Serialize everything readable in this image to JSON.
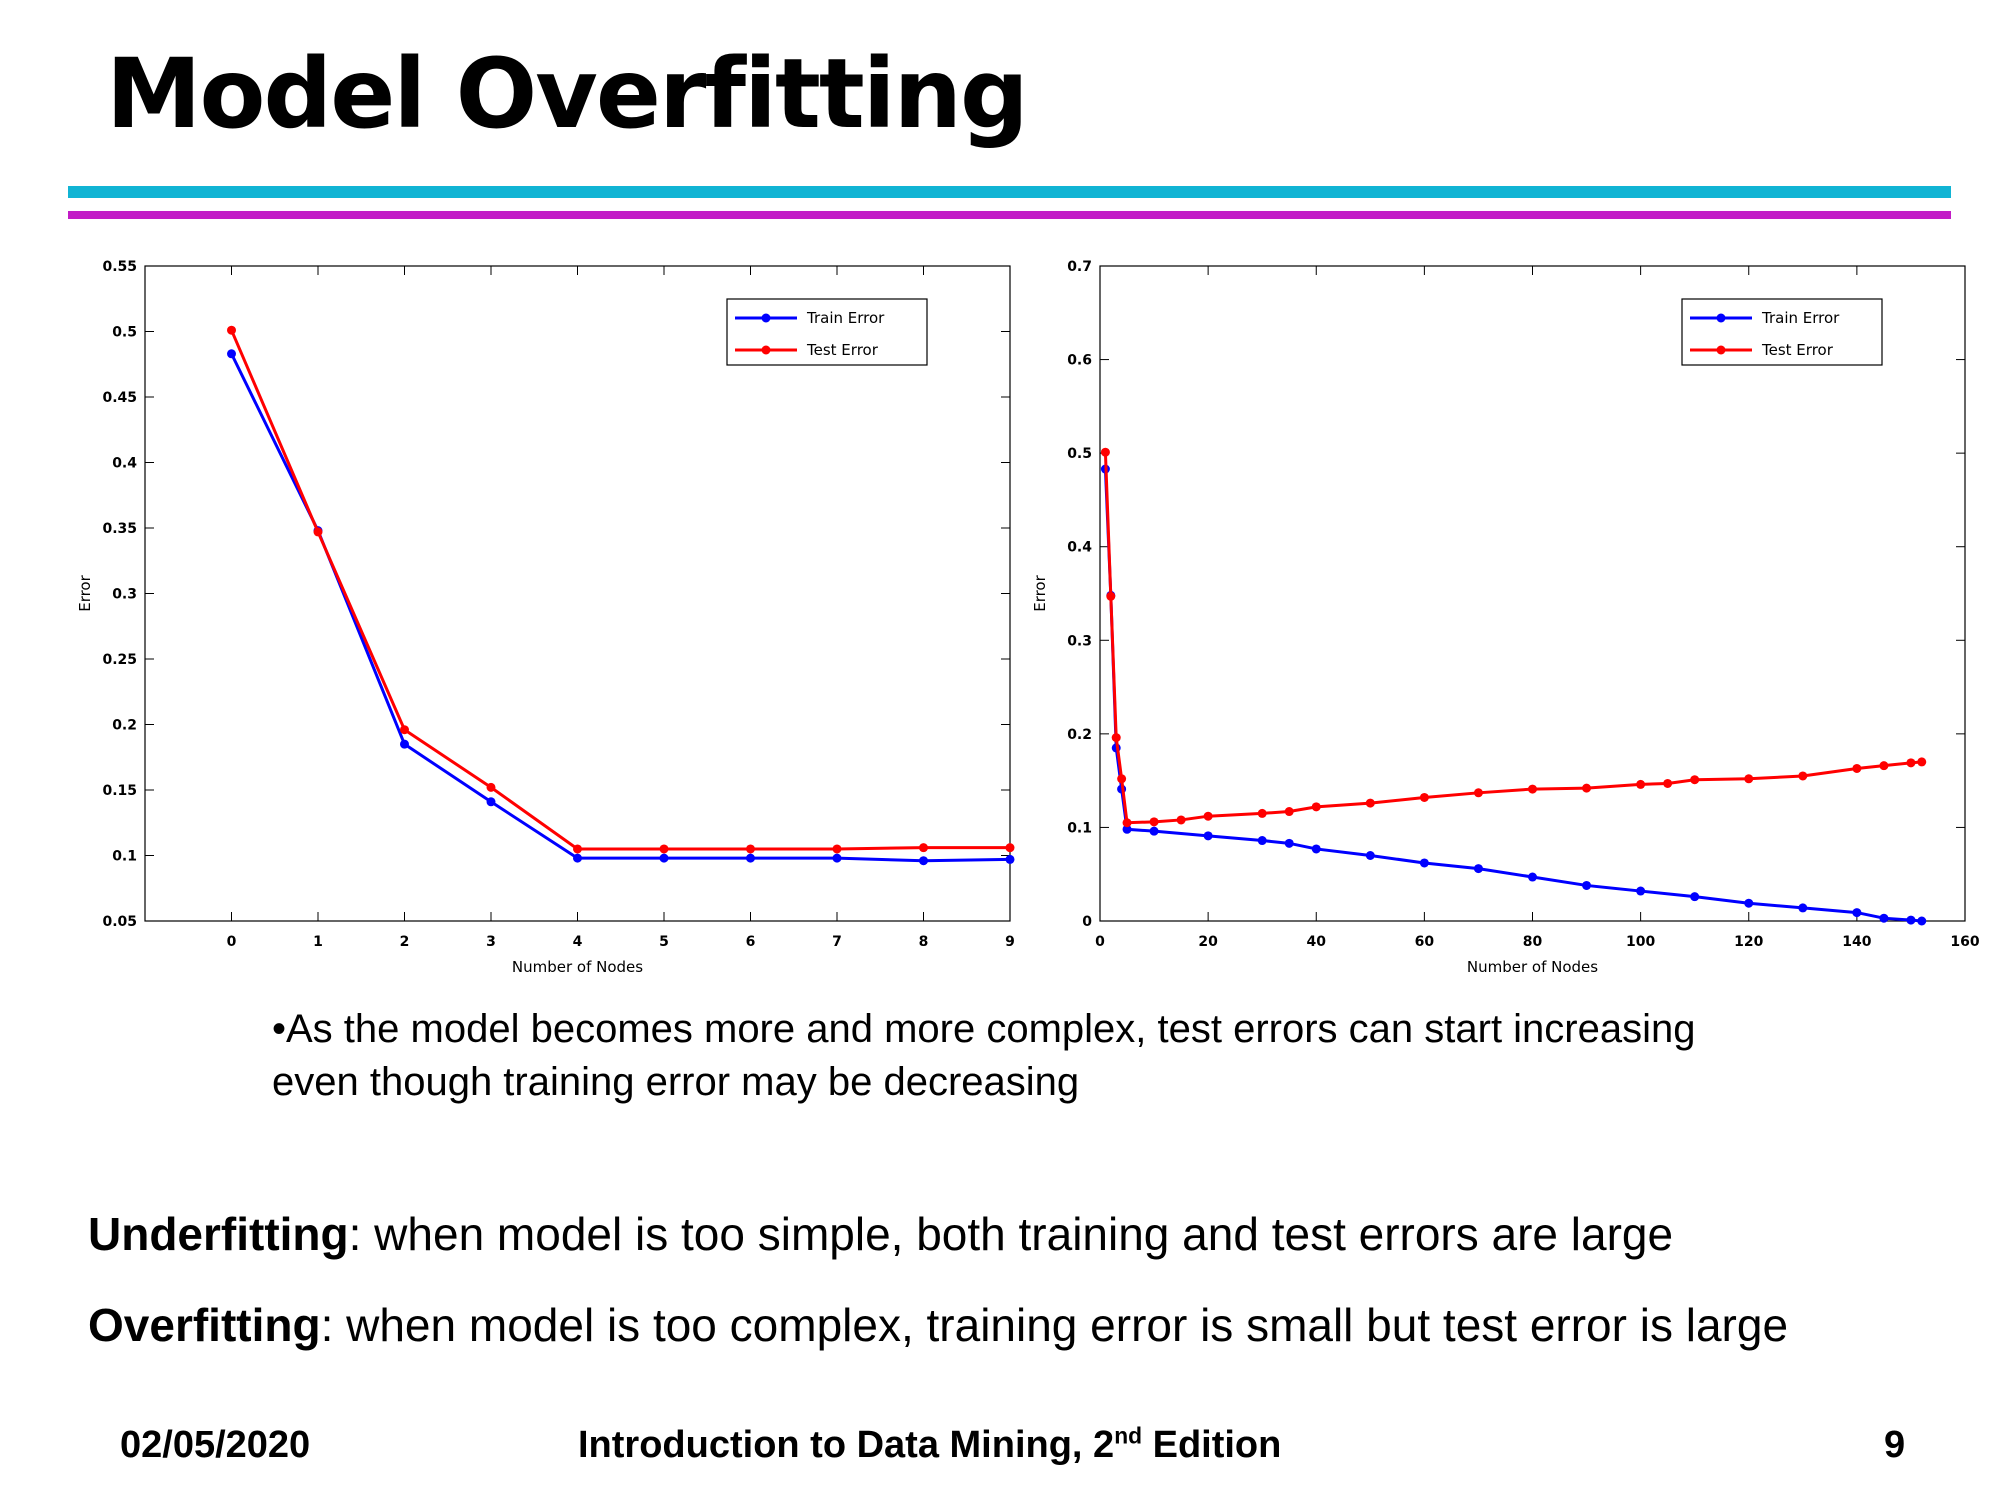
{
  "slide": {
    "title": "Model Overfitting",
    "bullet": "•As the model becomes more and more complex, test errors can start increasing even though training error may be decreasing",
    "underfitting_term": "Underfitting",
    "underfitting_text": ": when model is too simple, both training and test errors are large",
    "overfitting_term": "Overfitting",
    "overfitting_text": ": when model is too complex, training error is small but test error is large",
    "footer_date": "02/05/2020",
    "footer_course_prefix": "Introduction to Data Mining, 2",
    "footer_course_sup": "nd",
    "footer_course_suffix": " Edition",
    "page_number": "9"
  },
  "colors": {
    "cyan_rule": "#11b4d4",
    "magenta_rule": "#c21cc6",
    "train": "#0000ff",
    "test": "#ff0000"
  },
  "chart_data": [
    {
      "type": "line",
      "xlabel": "Number of Nodes",
      "ylabel": "Error",
      "xlim": [
        -1,
        9
      ],
      "ylim": [
        0.05,
        0.55
      ],
      "xticks": [
        0,
        1,
        2,
        3,
        4,
        5,
        6,
        7,
        8,
        9
      ],
      "xtick_labels": [
        "0",
        "1",
        "2",
        "3",
        "4",
        "5",
        "6",
        "7",
        "8",
        "9"
      ],
      "yticks": [
        0.05,
        0.1,
        0.15,
        0.2,
        0.25,
        0.3,
        0.35,
        0.4,
        0.45,
        0.5,
        0.55
      ],
      "ytick_labels": [
        "0.05",
        "0.1",
        "0.15",
        "0.2",
        "0.25",
        "0.3",
        "0.35",
        "0.4",
        "0.45",
        "0.5",
        "0.55"
      ],
      "grid": false,
      "legend": "top-right",
      "series": [
        {
          "name": "Train Error",
          "color": "#0000ff",
          "x": [
            0,
            1,
            2,
            3,
            4,
            5,
            6,
            7,
            8,
            9
          ],
          "y": [
            0.483,
            0.348,
            0.185,
            0.141,
            0.098,
            0.098,
            0.098,
            0.098,
            0.096,
            0.097
          ]
        },
        {
          "name": "Test Error",
          "color": "#ff0000",
          "x": [
            0,
            1,
            2,
            3,
            4,
            5,
            6,
            7,
            8,
            9
          ],
          "y": [
            0.501,
            0.347,
            0.196,
            0.152,
            0.105,
            0.105,
            0.105,
            0.105,
            0.106,
            0.106
          ]
        }
      ]
    },
    {
      "type": "line",
      "xlabel": "Number of Nodes",
      "ylabel": "Error",
      "xlim": [
        0,
        160
      ],
      "ylim": [
        0,
        0.7
      ],
      "xticks": [
        0,
        20,
        40,
        60,
        80,
        100,
        120,
        140,
        160
      ],
      "xtick_labels": [
        "0",
        "20",
        "40",
        "60",
        "80",
        "100",
        "120",
        "140",
        "160"
      ],
      "yticks": [
        0,
        0.1,
        0.2,
        0.3,
        0.4,
        0.5,
        0.6,
        0.7
      ],
      "ytick_labels": [
        "0",
        "0.1",
        "0.2",
        "0.3",
        "0.4",
        "0.5",
        "0.6",
        "0.7"
      ],
      "grid": false,
      "legend": "top-right",
      "series": [
        {
          "name": "Train Error",
          "color": "#0000ff",
          "x": [
            1,
            2,
            3,
            4,
            5,
            10,
            20,
            30,
            35,
            40,
            50,
            60,
            70,
            80,
            90,
            100,
            110,
            120,
            130,
            140,
            145,
            150,
            152
          ],
          "y": [
            0.483,
            0.348,
            0.185,
            0.141,
            0.098,
            0.096,
            0.091,
            0.086,
            0.083,
            0.077,
            0.07,
            0.062,
            0.056,
            0.047,
            0.038,
            0.032,
            0.026,
            0.019,
            0.014,
            0.009,
            0.003,
            0.001,
            0
          ]
        },
        {
          "name": "Test Error",
          "color": "#ff0000",
          "x": [
            1,
            2,
            3,
            4,
            5,
            10,
            15,
            20,
            30,
            35,
            40,
            50,
            60,
            70,
            80,
            90,
            100,
            105,
            110,
            120,
            130,
            140,
            145,
            150,
            152
          ],
          "y": [
            0.501,
            0.347,
            0.196,
            0.152,
            0.105,
            0.106,
            0.108,
            0.112,
            0.115,
            0.117,
            0.122,
            0.126,
            0.132,
            0.137,
            0.141,
            0.142,
            0.146,
            0.147,
            0.151,
            0.152,
            0.155,
            0.163,
            0.166,
            0.169,
            0.17
          ]
        }
      ]
    }
  ]
}
